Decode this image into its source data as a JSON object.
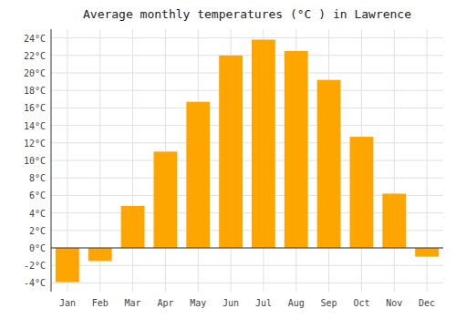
{
  "chart_data": {
    "type": "bar",
    "title": "Average monthly temperatures (°C ) in Lawrence",
    "categories": [
      "Jan",
      "Feb",
      "Mar",
      "Apr",
      "May",
      "Jun",
      "Jul",
      "Aug",
      "Sep",
      "Oct",
      "Nov",
      "Dec"
    ],
    "values": [
      -3.9,
      -1.5,
      4.8,
      11.0,
      16.7,
      22.0,
      23.8,
      22.5,
      19.2,
      12.7,
      6.2,
      -1.0
    ],
    "color": "#FFA500",
    "ylim": [
      -5,
      25
    ],
    "yticks": [
      {
        "value": -4,
        "label": "-4°C"
      },
      {
        "value": -2,
        "label": "-2°C"
      },
      {
        "value": 0,
        "label": "0°C"
      },
      {
        "value": 2,
        "label": "2°C"
      },
      {
        "value": 4,
        "label": "4°C"
      },
      {
        "value": 6,
        "label": "6°C"
      },
      {
        "value": 8,
        "label": "8°C"
      },
      {
        "value": 10,
        "label": "10°C"
      },
      {
        "value": 12,
        "label": "12°C"
      },
      {
        "value": 14,
        "label": "14°C"
      },
      {
        "value": 16,
        "label": "16°C"
      },
      {
        "value": 18,
        "label": "18°C"
      },
      {
        "value": 20,
        "label": "20°C"
      },
      {
        "value": 22,
        "label": "22°C"
      },
      {
        "value": 24,
        "label": "24°C"
      }
    ],
    "grid": true
  }
}
